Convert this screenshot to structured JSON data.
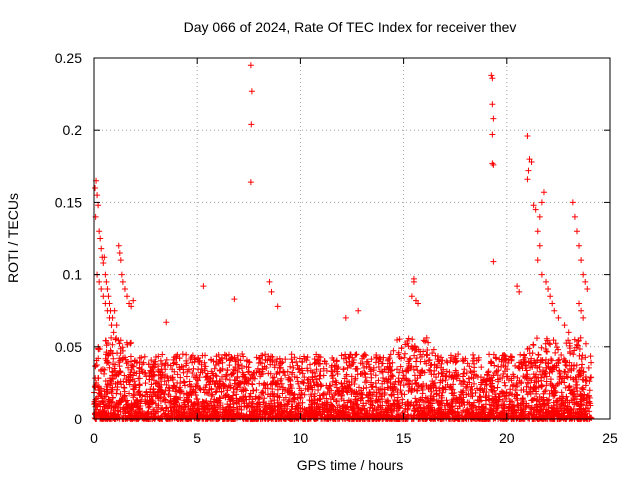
{
  "chart_data": {
    "type": "scatter",
    "title": "Day 066 of 2024, Rate Of TEC Index for receiver thev",
    "xlabel": "GPS time / hours",
    "ylabel": "ROTI / TECUs",
    "xlim": [
      0,
      25
    ],
    "ylim": [
      0,
      0.25
    ],
    "x_ticks": [
      "0",
      "5",
      "10",
      "15",
      "20",
      "25"
    ],
    "y_ticks": [
      "0",
      "0.05",
      "0.1",
      "0.15",
      "0.2",
      "0.25"
    ],
    "grid": true,
    "marker": "+",
    "marker_color": "#ff0000",
    "series": [
      {
        "name": "ROTI",
        "points_note": "dense cloud 0-0.05 over 0-24h",
        "points": [
          [
            0.05,
            0.16
          ],
          [
            0.1,
            0.165
          ],
          [
            0.15,
            0.155
          ],
          [
            0.2,
            0.148
          ],
          [
            0.08,
            0.14
          ],
          [
            0.25,
            0.13
          ],
          [
            0.3,
            0.125
          ],
          [
            0.35,
            0.118
          ],
          [
            0.4,
            0.112
          ],
          [
            0.45,
            0.108
          ],
          [
            0.5,
            0.112
          ],
          [
            0.55,
            0.1
          ],
          [
            0.6,
            0.095
          ],
          [
            0.65,
            0.09
          ],
          [
            0.7,
            0.085
          ],
          [
            0.75,
            0.08
          ],
          [
            0.8,
            0.075
          ],
          [
            0.9,
            0.07
          ],
          [
            1.0,
            0.075
          ],
          [
            1.1,
            0.065
          ],
          [
            1.2,
            0.12
          ],
          [
            1.25,
            0.115
          ],
          [
            1.3,
            0.11
          ],
          [
            1.35,
            0.1
          ],
          [
            1.4,
            0.095
          ],
          [
            1.5,
            0.09
          ],
          [
            1.6,
            0.085
          ],
          [
            1.7,
            0.08
          ],
          [
            1.8,
            0.078
          ],
          [
            1.9,
            0.082
          ],
          [
            0.15,
            0.1
          ],
          [
            0.25,
            0.095
          ],
          [
            0.35,
            0.09
          ],
          [
            0.45,
            0.085
          ],
          [
            0.55,
            0.08
          ],
          [
            0.65,
            0.075
          ],
          [
            0.75,
            0.07
          ],
          [
            0.85,
            0.065
          ],
          [
            0.95,
            0.06
          ],
          [
            1.05,
            0.055
          ],
          [
            3.5,
            0.067
          ],
          [
            5.3,
            0.092
          ],
          [
            6.8,
            0.083
          ],
          [
            7.6,
            0.245
          ],
          [
            7.65,
            0.227
          ],
          [
            7.62,
            0.204
          ],
          [
            7.6,
            0.164
          ],
          [
            8.5,
            0.095
          ],
          [
            8.6,
            0.088
          ],
          [
            8.9,
            0.078
          ],
          [
            12.2,
            0.07
          ],
          [
            12.8,
            0.075
          ],
          [
            15.5,
            0.097
          ],
          [
            15.5,
            0.095
          ],
          [
            15.4,
            0.085
          ],
          [
            15.6,
            0.082
          ],
          [
            15.7,
            0.08
          ],
          [
            19.25,
            0.238
          ],
          [
            19.3,
            0.236
          ],
          [
            19.3,
            0.218
          ],
          [
            19.35,
            0.208
          ],
          [
            19.3,
            0.197
          ],
          [
            19.3,
            0.177
          ],
          [
            19.35,
            0.176
          ],
          [
            19.35,
            0.109
          ],
          [
            21.0,
            0.196
          ],
          [
            21.1,
            0.18
          ],
          [
            21.2,
            0.178
          ],
          [
            21.0,
            0.166
          ],
          [
            21.05,
            0.172
          ],
          [
            21.3,
            0.148
          ],
          [
            21.4,
            0.145
          ],
          [
            21.5,
            0.13
          ],
          [
            21.6,
            0.14
          ],
          [
            21.7,
            0.15
          ],
          [
            21.8,
            0.157
          ],
          [
            21.6,
            0.12
          ],
          [
            21.5,
            0.11
          ],
          [
            21.7,
            0.1
          ],
          [
            21.9,
            0.095
          ],
          [
            22.0,
            0.09
          ],
          [
            22.1,
            0.085
          ],
          [
            22.2,
            0.08
          ],
          [
            22.3,
            0.075
          ],
          [
            22.5,
            0.07
          ],
          [
            23.2,
            0.15
          ],
          [
            23.3,
            0.14
          ],
          [
            23.4,
            0.13
          ],
          [
            23.5,
            0.12
          ],
          [
            23.6,
            0.11
          ],
          [
            23.7,
            0.1
          ],
          [
            23.8,
            0.095
          ],
          [
            23.9,
            0.09
          ],
          [
            20.5,
            0.092
          ],
          [
            20.6,
            0.088
          ],
          [
            23.5,
            0.08
          ],
          [
            23.6,
            0.075
          ],
          [
            23.7,
            0.07
          ],
          [
            22.8,
            0.065
          ],
          [
            23.0,
            0.06
          ]
        ]
      }
    ]
  }
}
